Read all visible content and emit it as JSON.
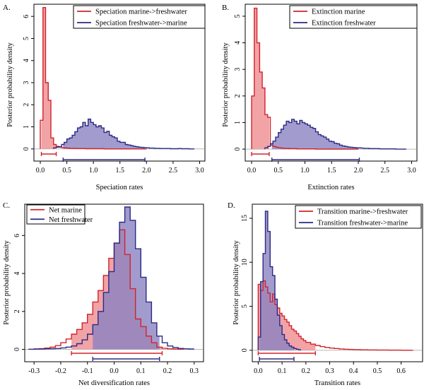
{
  "colors": {
    "red": "#d2232a",
    "red_fill": "#f0999c",
    "blue": "#2b2a84",
    "blue_fill": "#8b82c2",
    "overlap_fill": "#9c6aa8",
    "zero_line": "#b8b8b8"
  },
  "chart_data": [
    {
      "id": "A",
      "panel_label": "A.",
      "type": "histogram",
      "xlabel": "Speciation rates",
      "ylabel": "Posterior probability density",
      "xlim": [
        -0.12,
        3.1
      ],
      "ylim": [
        -0.55,
        6.55
      ],
      "xticks": [
        0.0,
        0.5,
        1.0,
        1.5,
        2.0,
        2.5,
        3.0
      ],
      "xtick_labels": [
        "0.0",
        "0.5",
        "1.0",
        "1.5",
        "2.0",
        "2.5",
        "3.0"
      ],
      "yticks": [
        0,
        1,
        2,
        3,
        4,
        5,
        6
      ],
      "ytick_labels": [
        "0",
        "1",
        "2",
        "3",
        "4",
        "5",
        "6"
      ],
      "legend_pos": "top-right",
      "series": [
        {
          "name": "Speciation marine->freshwater",
          "color_key": "red",
          "x": [
            0.0,
            0.05,
            0.1,
            0.15,
            0.2,
            0.25,
            0.3,
            0.35,
            0.4,
            0.45,
            0.5,
            0.55,
            0.6,
            0.65,
            0.7,
            0.75,
            0.8,
            0.85,
            0.9,
            0.95,
            1.0,
            1.05,
            1.1,
            1.15,
            1.2,
            1.25,
            1.3,
            1.35,
            1.4,
            1.45,
            1.5,
            1.55,
            1.6,
            1.65,
            1.7,
            1.75,
            1.8,
            1.85,
            1.9,
            1.95,
            2.0
          ],
          "y": [
            1.3,
            6.4,
            3.0,
            2.2,
            0.5,
            0.2,
            0.12,
            0.08,
            0.06,
            0.05,
            0.04,
            0.03,
            0.03,
            0.02,
            0.02,
            0.02,
            0.02,
            0.01,
            0.01,
            0.01,
            0.01,
            0.01,
            0.01,
            0.01,
            0.0,
            0.0,
            0.0,
            0.0,
            0.0,
            0.0,
            0.0,
            0.0,
            0.0,
            0.0,
            0.0,
            0.0,
            0.0,
            0.0,
            0.0,
            0.0
          ],
          "hpd": [
            0.02,
            0.3
          ]
        },
        {
          "name": "Speciation freshwater->marine",
          "color_key": "blue",
          "x": [
            0.25,
            0.3,
            0.35,
            0.4,
            0.45,
            0.5,
            0.55,
            0.6,
            0.65,
            0.7,
            0.75,
            0.8,
            0.85,
            0.9,
            0.95,
            1.0,
            1.05,
            1.1,
            1.15,
            1.2,
            1.25,
            1.3,
            1.35,
            1.4,
            1.45,
            1.5,
            1.55,
            1.6,
            1.65,
            1.7,
            1.75,
            1.8,
            1.85,
            1.9,
            1.95,
            2.0,
            2.05,
            2.1,
            2.15,
            2.2,
            2.25,
            2.3,
            2.35,
            2.4,
            2.45,
            2.5,
            2.55,
            2.6,
            2.65,
            2.7,
            2.75,
            2.8,
            2.85,
            2.9
          ],
          "y": [
            0.05,
            0.08,
            0.1,
            0.2,
            0.3,
            0.45,
            0.5,
            0.62,
            0.78,
            0.95,
            1.0,
            1.2,
            1.05,
            1.35,
            1.2,
            1.1,
            1.0,
            1.05,
            0.95,
            0.75,
            0.8,
            0.62,
            0.55,
            0.5,
            0.35,
            0.3,
            0.3,
            0.2,
            0.18,
            0.15,
            0.12,
            0.1,
            0.08,
            0.07,
            0.06,
            0.05,
            0.04,
            0.04,
            0.03,
            0.03,
            0.02,
            0.02,
            0.02,
            0.02,
            0.01,
            0.01,
            0.01,
            0.02,
            0.01,
            0.01,
            0.01,
            0.0,
            0.0
          ],
          "hpd": [
            0.43,
            1.97
          ]
        }
      ]
    },
    {
      "id": "B",
      "panel_label": "B.",
      "type": "histogram",
      "xlabel": "Extinction rates",
      "ylabel": "Posterior probability density",
      "xlim": [
        -0.12,
        3.1
      ],
      "ylim": [
        -0.45,
        5.45
      ],
      "xticks": [
        0.0,
        0.5,
        1.0,
        1.5,
        2.0,
        2.5,
        3.0
      ],
      "xtick_labels": [
        "0.0",
        "0.5",
        "1.0",
        "1.5",
        "2.0",
        "2.5",
        "3.0"
      ],
      "yticks": [
        0,
        1,
        2,
        3,
        4,
        5
      ],
      "ytick_labels": [
        "0",
        "1",
        "2",
        "3",
        "4",
        "5"
      ],
      "legend_pos": "top-right",
      "series": [
        {
          "name": "Extinction marine",
          "color_key": "red",
          "x": [
            0.0,
            0.05,
            0.1,
            0.15,
            0.2,
            0.25,
            0.3,
            0.35,
            0.4,
            0.45,
            0.5,
            0.55,
            0.6,
            0.65,
            0.7,
            0.75,
            0.8,
            0.85,
            0.9,
            0.95,
            1.0,
            1.05,
            1.1,
            1.15,
            1.2,
            1.25,
            1.3,
            1.35,
            1.4,
            1.45,
            1.5,
            1.55,
            1.6,
            1.65,
            1.7,
            1.75,
            1.8,
            1.85,
            1.9,
            1.95,
            2.0
          ],
          "y": [
            2.0,
            5.3,
            4.0,
            2.9,
            2.3,
            1.3,
            1.2,
            0.15,
            0.1,
            0.07,
            0.05,
            0.04,
            0.03,
            0.03,
            0.02,
            0.02,
            0.02,
            0.01,
            0.01,
            0.01,
            0.01,
            0.01,
            0.01,
            0.01,
            0.0,
            0.0,
            0.0,
            0.0,
            0.0,
            0.0,
            0.0,
            0.0,
            0.0,
            0.0,
            0.0,
            0.0,
            0.0,
            0.0,
            0.0,
            0.0
          ],
          "hpd": [
            0.0,
            0.33
          ]
        },
        {
          "name": "Extinction freshwater",
          "color_key": "blue",
          "x": [
            0.25,
            0.3,
            0.35,
            0.4,
            0.45,
            0.5,
            0.55,
            0.6,
            0.65,
            0.7,
            0.75,
            0.8,
            0.85,
            0.9,
            0.95,
            1.0,
            1.05,
            1.1,
            1.15,
            1.2,
            1.25,
            1.3,
            1.35,
            1.4,
            1.45,
            1.5,
            1.55,
            1.6,
            1.65,
            1.7,
            1.75,
            1.8,
            1.85,
            1.9,
            1.95,
            2.0,
            2.05,
            2.1,
            2.15,
            2.2,
            2.25,
            2.3,
            2.35,
            2.4,
            2.45,
            2.5,
            2.55,
            2.6,
            2.65,
            2.7,
            2.75,
            2.8,
            2.85,
            2.9
          ],
          "y": [
            0.05,
            0.1,
            0.2,
            0.3,
            0.45,
            0.62,
            0.75,
            0.9,
            1.05,
            1.0,
            1.12,
            1.05,
            0.95,
            1.08,
            1.0,
            0.95,
            0.9,
            0.82,
            0.78,
            0.65,
            0.55,
            0.5,
            0.45,
            0.38,
            0.3,
            0.28,
            0.22,
            0.2,
            0.15,
            0.12,
            0.1,
            0.08,
            0.07,
            0.06,
            0.05,
            0.05,
            0.04,
            0.03,
            0.03,
            0.02,
            0.02,
            0.02,
            0.02,
            0.01,
            0.01,
            0.01,
            0.01,
            0.01,
            0.01,
            0.0,
            0.0,
            0.0,
            0.0
          ],
          "hpd": [
            0.38,
            2.02
          ]
        }
      ]
    },
    {
      "id": "C",
      "panel_label": "C.",
      "type": "histogram",
      "xlabel": "Net diversification rates",
      "ylabel": "Posterior probability density",
      "xlim": [
        -0.335,
        0.335
      ],
      "ylim": [
        -0.65,
        7.65
      ],
      "xticks": [
        -0.3,
        -0.2,
        -0.1,
        0.0,
        0.1,
        0.2,
        0.3
      ],
      "xtick_labels": [
        "-0.3",
        "-0.2",
        "-0.1",
        "0.0",
        "0.1",
        "0.2",
        "0.3"
      ],
      "yticks": [
        0,
        2,
        4,
        6
      ],
      "ytick_labels": [
        "0",
        "2",
        "4",
        "6"
      ],
      "legend_pos": "top-left",
      "series": [
        {
          "name": "Net marine",
          "color_key": "red",
          "x": [
            -0.3,
            -0.28,
            -0.26,
            -0.24,
            -0.22,
            -0.2,
            -0.18,
            -0.16,
            -0.14,
            -0.12,
            -0.1,
            -0.08,
            -0.06,
            -0.04,
            -0.02,
            0.0,
            0.02,
            0.04,
            0.06,
            0.08,
            0.1,
            0.12,
            0.14,
            0.16,
            0.18,
            0.2,
            0.22,
            0.24,
            0.26
          ],
          "y": [
            0.02,
            0.04,
            0.07,
            0.12,
            0.2,
            0.35,
            0.55,
            0.8,
            1.05,
            1.4,
            1.85,
            2.5,
            3.1,
            3.9,
            4.8,
            5.6,
            6.3,
            5.0,
            3.2,
            1.6,
            1.2,
            0.7,
            0.35,
            0.12,
            0.06,
            0.03,
            0.02,
            0.01
          ],
          "hpd": [
            -0.16,
            0.18
          ]
        },
        {
          "name": "Net freshwater",
          "color_key": "blue",
          "x": [
            -0.32,
            -0.3,
            -0.28,
            -0.26,
            -0.24,
            -0.22,
            -0.2,
            -0.18,
            -0.16,
            -0.14,
            -0.12,
            -0.1,
            -0.08,
            -0.06,
            -0.04,
            -0.02,
            0.0,
            0.02,
            0.04,
            0.06,
            0.08,
            0.1,
            0.12,
            0.14,
            0.16,
            0.18,
            0.2,
            0.22,
            0.24,
            0.26,
            0.28,
            0.3
          ],
          "y": [
            0.01,
            0.02,
            0.02,
            0.03,
            0.04,
            0.05,
            0.08,
            0.12,
            0.18,
            0.3,
            0.5,
            0.8,
            1.3,
            2.0,
            3.0,
            4.1,
            5.6,
            6.7,
            7.5,
            6.8,
            5.3,
            3.8,
            2.5,
            1.4,
            0.7,
            0.35,
            0.18,
            0.1,
            0.05,
            0.03,
            0.02
          ],
          "hpd": [
            -0.08,
            0.17
          ]
        }
      ]
    },
    {
      "id": "D",
      "panel_label": "D.",
      "type": "histogram",
      "xlabel": "Transition rates",
      "ylabel": "Posterior probability density",
      "xlim": [
        -0.025,
        0.69
      ],
      "ylim": [
        -1.3,
        16.6
      ],
      "xticks": [
        0.0,
        0.1,
        0.2,
        0.3,
        0.4,
        0.5,
        0.6
      ],
      "xtick_labels": [
        "0.0",
        "0.1",
        "0.2",
        "0.3",
        "0.4",
        "0.5",
        "0.6"
      ],
      "yticks": [
        0,
        5,
        10,
        15
      ],
      "ytick_labels": [
        "0",
        "5",
        "10",
        "15"
      ],
      "legend_pos": "top-right",
      "series": [
        {
          "name": "Transition marine->freshwater",
          "color_key": "red",
          "x": [
            0.0,
            0.01,
            0.02,
            0.03,
            0.04,
            0.05,
            0.06,
            0.07,
            0.08,
            0.09,
            0.1,
            0.11,
            0.12,
            0.13,
            0.14,
            0.15,
            0.16,
            0.17,
            0.18,
            0.19,
            0.2,
            0.22,
            0.24,
            0.26,
            0.28,
            0.3,
            0.32,
            0.34,
            0.36,
            0.38,
            0.4,
            0.43,
            0.46,
            0.5,
            0.55,
            0.6,
            0.65
          ],
          "y": [
            7.5,
            6.8,
            7.9,
            7.2,
            6.5,
            5.5,
            6.4,
            5.2,
            4.8,
            4.2,
            3.9,
            3.5,
            3.2,
            2.8,
            2.4,
            2.2,
            1.9,
            1.6,
            1.3,
            1.1,
            0.9,
            0.7,
            0.55,
            0.42,
            0.32,
            0.25,
            0.2,
            0.15,
            0.12,
            0.1,
            0.08,
            0.06,
            0.04,
            0.03,
            0.02,
            0.01
          ],
          "hpd": [
            0.0,
            0.24
          ]
        },
        {
          "name": "Transition freshwater->marine",
          "color_key": "blue",
          "x": [
            0.0,
            0.01,
            0.02,
            0.03,
            0.04,
            0.05,
            0.06,
            0.07,
            0.08,
            0.09,
            0.1,
            0.11,
            0.12,
            0.13,
            0.14,
            0.15,
            0.16,
            0.17,
            0.18
          ],
          "y": [
            1.5,
            7.8,
            11.0,
            15.8,
            13.5,
            9.5,
            8.5,
            5.8,
            4.0,
            2.8,
            1.8,
            1.2,
            0.8,
            0.5,
            0.35,
            0.2,
            0.12,
            0.06
          ],
          "hpd": [
            0.005,
            0.15
          ]
        }
      ]
    }
  ]
}
